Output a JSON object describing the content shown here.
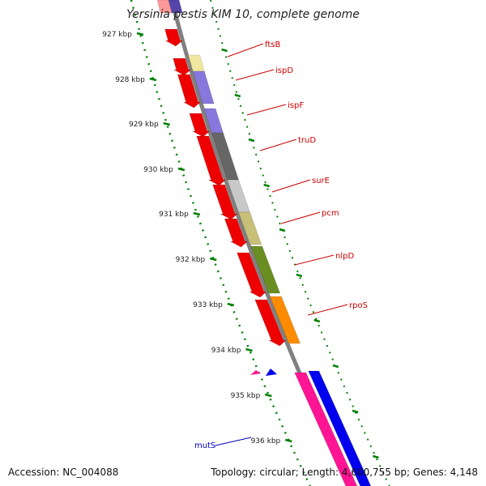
{
  "title": "Yersinia pestis KIM 10, complete genome",
  "accession": "Accession: NC_004088",
  "summary": "Topology: circular; Length: 4,600,755 bp; Genes: 4,148",
  "kbp_ticks": [
    "927 kbp",
    "928 kbp",
    "929 kbp",
    "930 kbp",
    "931 kbp",
    "932 kbp",
    "933 kbp",
    "934 kbp",
    "935 kbp",
    "936 kbp"
  ],
  "genes": [
    {
      "name": "ftsB",
      "color": "#f0e6a0",
      "label_color": "#cc0000"
    },
    {
      "name": "ispD",
      "color": "#8877dd",
      "label_color": "#cc0000"
    },
    {
      "name": "ispF",
      "color": "#8877dd",
      "label_color": "#cc0000"
    },
    {
      "name": "truD",
      "color": "#666666",
      "label_color": "#cc0000"
    },
    {
      "name": "surE",
      "color": "#c8c8c8",
      "label_color": "#cc0000"
    },
    {
      "name": "pcm",
      "color": "#c8bf78",
      "label_color": "#cc0000"
    },
    {
      "name": "nlpD",
      "color": "#6b8e23",
      "label_color": "#cc0000"
    },
    {
      "name": "rpoS",
      "color": "#ff8c00",
      "label_color": "#cc0000"
    }
  ],
  "left_gene": {
    "name": "mutS",
    "label_color": "#0000cc"
  },
  "colors": {
    "cds": "#ee0000",
    "backbone": "#808080",
    "tick": "#008000",
    "magenta": "#ff1493",
    "blue": "#0000ee"
  }
}
